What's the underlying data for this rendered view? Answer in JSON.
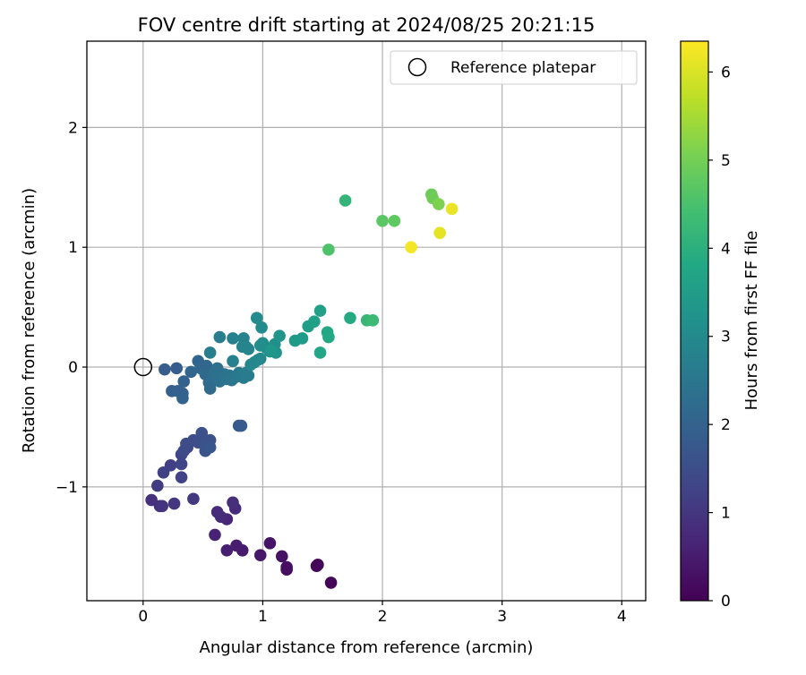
{
  "chart_data": {
    "type": "scatter",
    "title": "FOV centre drift starting at 2024/08/25 20:21:15",
    "xlabel": "Angular distance from reference (arcmin)",
    "ylabel": "Rotation from reference (arcmin)",
    "xlim": [
      -0.47,
      4.2
    ],
    "ylim": [
      -1.95,
      2.72
    ],
    "xticks": [
      0,
      1,
      2,
      3,
      4
    ],
    "xtick_labels": [
      "0",
      "1",
      "2",
      "3",
      "4"
    ],
    "yticks": [
      -1,
      0,
      1,
      2
    ],
    "ytick_labels": [
      "−1",
      "0",
      "1",
      "2"
    ],
    "grid": true,
    "legend": {
      "placement": "top-right",
      "entries": [
        {
          "label": "Reference platepar",
          "marker": "hollow-circle"
        }
      ]
    },
    "reference_point": {
      "x": 0,
      "y": 0
    },
    "colorbar": {
      "label": "Hours from first FF file",
      "range": [
        0,
        6.35
      ],
      "ticks": [
        0,
        1,
        2,
        3,
        4,
        5,
        6
      ],
      "tick_labels": [
        "0",
        "1",
        "2",
        "3",
        "4",
        "5",
        "6"
      ],
      "colormap": "viridis"
    },
    "points": [
      {
        "x": 1.57,
        "y": -1.8,
        "c": 0.05
      },
      {
        "x": 1.45,
        "y": -1.66,
        "c": 0.1
      },
      {
        "x": 1.46,
        "y": -1.65,
        "c": 0.1
      },
      {
        "x": 1.2,
        "y": -1.69,
        "c": 0.2
      },
      {
        "x": 1.2,
        "y": -1.67,
        "c": 0.25
      },
      {
        "x": 1.16,
        "y": -1.58,
        "c": 0.3
      },
      {
        "x": 1.06,
        "y": -1.47,
        "c": 0.35
      },
      {
        "x": 0.98,
        "y": -1.57,
        "c": 0.4
      },
      {
        "x": 0.83,
        "y": -1.53,
        "c": 0.45
      },
      {
        "x": 0.78,
        "y": -1.49,
        "c": 0.5
      },
      {
        "x": 0.7,
        "y": -1.53,
        "c": 0.55
      },
      {
        "x": 0.6,
        "y": -1.4,
        "c": 0.6
      },
      {
        "x": 0.7,
        "y": -1.27,
        "c": 0.7
      },
      {
        "x": 0.65,
        "y": -1.25,
        "c": 0.75
      },
      {
        "x": 0.62,
        "y": -1.21,
        "c": 0.8
      },
      {
        "x": 0.77,
        "y": -1.18,
        "c": 0.8
      },
      {
        "x": 0.75,
        "y": -1.13,
        "c": 0.85
      },
      {
        "x": 0.07,
        "y": -1.11,
        "c": 0.9
      },
      {
        "x": 0.14,
        "y": -1.16,
        "c": 0.9
      },
      {
        "x": 0.16,
        "y": -1.16,
        "c": 0.95
      },
      {
        "x": 0.26,
        "y": -1.14,
        "c": 1.0
      },
      {
        "x": 0.42,
        "y": -1.1,
        "c": 1.05
      },
      {
        "x": 0.12,
        "y": -0.99,
        "c": 1.1
      },
      {
        "x": 0.17,
        "y": -0.88,
        "c": 1.2
      },
      {
        "x": 0.23,
        "y": -0.82,
        "c": 1.2
      },
      {
        "x": 0.32,
        "y": -0.92,
        "c": 1.25
      },
      {
        "x": 0.32,
        "y": -0.81,
        "c": 1.3
      },
      {
        "x": 0.32,
        "y": -0.73,
        "c": 1.35
      },
      {
        "x": 0.34,
        "y": -0.7,
        "c": 1.4
      },
      {
        "x": 0.37,
        "y": -0.67,
        "c": 1.4
      },
      {
        "x": 0.36,
        "y": -0.64,
        "c": 1.45
      },
      {
        "x": 0.42,
        "y": -0.61,
        "c": 1.5
      },
      {
        "x": 0.46,
        "y": -0.63,
        "c": 1.5
      },
      {
        "x": 0.49,
        "y": -0.55,
        "c": 1.55
      },
      {
        "x": 0.52,
        "y": -0.64,
        "c": 1.6
      },
      {
        "x": 0.56,
        "y": -0.61,
        "c": 1.6
      },
      {
        "x": 0.52,
        "y": -0.7,
        "c": 1.65
      },
      {
        "x": 0.56,
        "y": -0.67,
        "c": 1.7
      },
      {
        "x": 0.8,
        "y": -0.49,
        "c": 1.75
      },
      {
        "x": 0.82,
        "y": -0.49,
        "c": 1.8
      },
      {
        "x": 0.18,
        "y": -0.02,
        "c": 1.85
      },
      {
        "x": 0.28,
        "y": -0.01,
        "c": 1.85
      },
      {
        "x": 0.24,
        "y": -0.2,
        "c": 1.9
      },
      {
        "x": 0.29,
        "y": -0.2,
        "c": 1.95
      },
      {
        "x": 0.33,
        "y": -0.22,
        "c": 1.95
      },
      {
        "x": 0.33,
        "y": -0.26,
        "c": 2.0
      },
      {
        "x": 0.34,
        "y": -0.12,
        "c": 2.0
      },
      {
        "x": 0.4,
        "y": -0.04,
        "c": 2.05
      },
      {
        "x": 0.46,
        "y": 0.05,
        "c": 2.05
      },
      {
        "x": 0.48,
        "y": -0.01,
        "c": 2.1
      },
      {
        "x": 0.53,
        "y": 0.01,
        "c": 2.1
      },
      {
        "x": 0.52,
        "y": -0.06,
        "c": 2.15
      },
      {
        "x": 0.55,
        "y": -0.13,
        "c": 2.2
      },
      {
        "x": 0.56,
        "y": -0.18,
        "c": 2.2
      },
      {
        "x": 0.58,
        "y": -0.09,
        "c": 2.25
      },
      {
        "x": 0.6,
        "y": -0.05,
        "c": 2.3
      },
      {
        "x": 0.62,
        "y": -0.01,
        "c": 2.3
      },
      {
        "x": 0.64,
        "y": -0.12,
        "c": 2.35
      },
      {
        "x": 0.66,
        "y": -0.08,
        "c": 2.35
      },
      {
        "x": 0.68,
        "y": -0.06,
        "c": 2.4
      },
      {
        "x": 0.7,
        "y": -0.1,
        "c": 2.45
      },
      {
        "x": 0.72,
        "y": -0.07,
        "c": 2.45
      },
      {
        "x": 0.74,
        "y": -0.11,
        "c": 2.5
      },
      {
        "x": 0.76,
        "y": -0.09,
        "c": 2.5
      },
      {
        "x": 0.78,
        "y": -0.08,
        "c": 2.55
      },
      {
        "x": 0.8,
        "y": -0.05,
        "c": 2.55
      },
      {
        "x": 0.82,
        "y": -0.07,
        "c": 2.6
      },
      {
        "x": 0.84,
        "y": -0.09,
        "c": 2.6
      },
      {
        "x": 0.86,
        "y": -0.05,
        "c": 2.65
      },
      {
        "x": 0.88,
        "y": -0.07,
        "c": 2.65
      },
      {
        "x": 0.64,
        "y": 0.25,
        "c": 2.7
      },
      {
        "x": 0.56,
        "y": 0.12,
        "c": 2.7
      },
      {
        "x": 0.75,
        "y": 0.05,
        "c": 2.75
      },
      {
        "x": 0.75,
        "y": 0.24,
        "c": 2.75
      },
      {
        "x": 0.84,
        "y": 0.24,
        "c": 2.8
      },
      {
        "x": 0.83,
        "y": 0.17,
        "c": 2.8
      },
      {
        "x": 0.86,
        "y": 0.17,
        "c": 2.85
      },
      {
        "x": 0.88,
        "y": 0.15,
        "c": 2.85
      },
      {
        "x": 0.9,
        "y": 0.02,
        "c": 2.9
      },
      {
        "x": 0.93,
        "y": 0.04,
        "c": 2.9
      },
      {
        "x": 0.96,
        "y": 0.06,
        "c": 2.95
      },
      {
        "x": 0.98,
        "y": 0.07,
        "c": 2.95
      },
      {
        "x": 0.95,
        "y": 0.41,
        "c": 3.0
      },
      {
        "x": 0.99,
        "y": 0.33,
        "c": 3.0
      },
      {
        "x": 0.98,
        "y": 0.18,
        "c": 3.05
      },
      {
        "x": 1.0,
        "y": 0.2,
        "c": 3.05
      },
      {
        "x": 1.03,
        "y": 0.16,
        "c": 3.1
      },
      {
        "x": 1.06,
        "y": 0.13,
        "c": 3.1
      },
      {
        "x": 1.1,
        "y": 0.19,
        "c": 3.15
      },
      {
        "x": 1.11,
        "y": 0.12,
        "c": 3.2
      },
      {
        "x": 1.14,
        "y": 0.26,
        "c": 3.25
      },
      {
        "x": 1.07,
        "y": 0.14,
        "c": 3.3
      },
      {
        "x": 1.27,
        "y": 0.22,
        "c": 3.4
      },
      {
        "x": 1.33,
        "y": 0.24,
        "c": 3.45
      },
      {
        "x": 1.38,
        "y": 0.34,
        "c": 3.5
      },
      {
        "x": 1.43,
        "y": 0.38,
        "c": 3.55
      },
      {
        "x": 1.48,
        "y": 0.47,
        "c": 3.6
      },
      {
        "x": 1.48,
        "y": 0.12,
        "c": 3.75
      },
      {
        "x": 1.54,
        "y": 0.29,
        "c": 3.8
      },
      {
        "x": 1.55,
        "y": 0.25,
        "c": 3.8
      },
      {
        "x": 1.73,
        "y": 0.41,
        "c": 3.85
      },
      {
        "x": 1.87,
        "y": 0.39,
        "c": 4.2
      },
      {
        "x": 1.92,
        "y": 0.39,
        "c": 4.3
      },
      {
        "x": 1.69,
        "y": 1.39,
        "c": 4.15
      },
      {
        "x": 1.55,
        "y": 0.98,
        "c": 4.55
      },
      {
        "x": 2.0,
        "y": 1.22,
        "c": 4.7
      },
      {
        "x": 2.1,
        "y": 1.22,
        "c": 4.75
      },
      {
        "x": 2.41,
        "y": 1.44,
        "c": 4.9
      },
      {
        "x": 2.42,
        "y": 1.41,
        "c": 4.95
      },
      {
        "x": 2.47,
        "y": 1.36,
        "c": 5.1
      },
      {
        "x": 2.58,
        "y": 1.32,
        "c": 6.15
      },
      {
        "x": 2.24,
        "y": 1.0,
        "c": 6.25
      },
      {
        "x": 2.48,
        "y": 1.12,
        "c": 6.1
      }
    ]
  }
}
